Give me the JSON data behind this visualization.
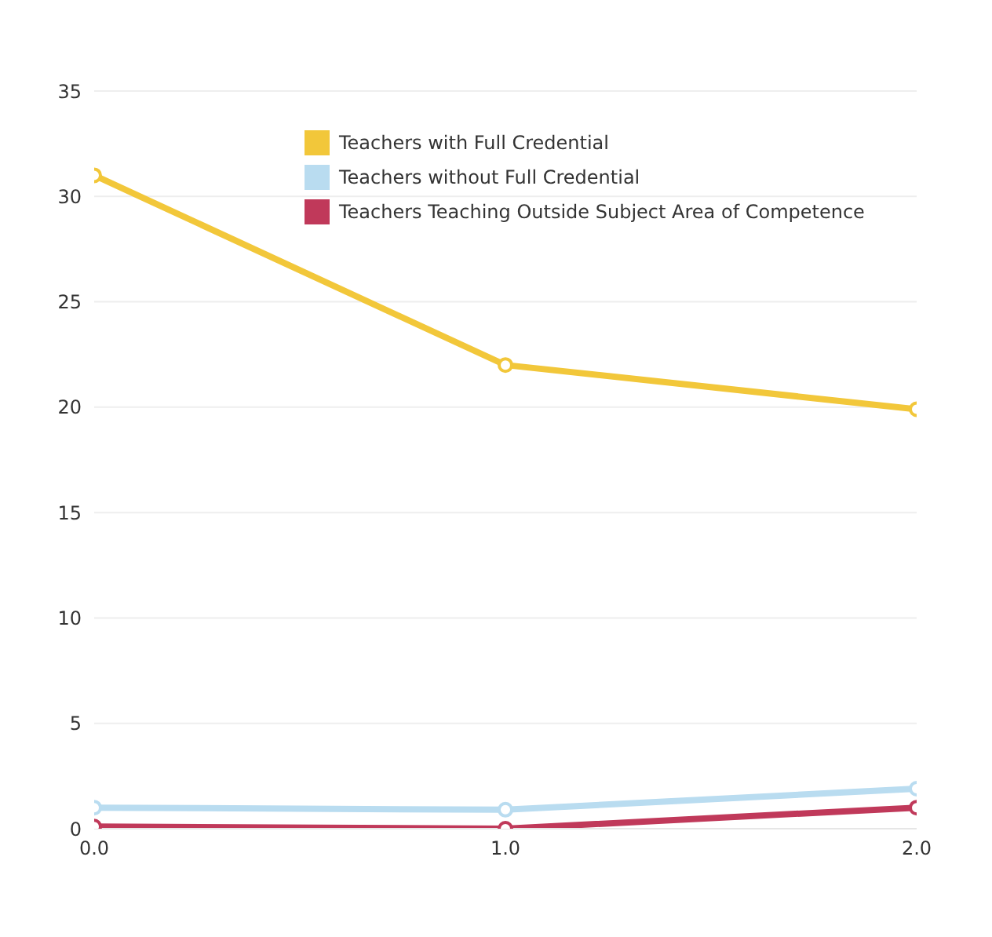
{
  "chart_data": {
    "type": "line",
    "x": [
      0,
      1,
      2
    ],
    "series": [
      {
        "name": "Teachers with Full Credential",
        "color": "#f2c73a",
        "values": [
          31,
          22,
          19.9
        ]
      },
      {
        "name": "Teachers without Full Credential",
        "color": "#b9dcf0",
        "values": [
          1,
          0.9,
          1.9
        ]
      },
      {
        "name": "Teachers Teaching Outside Subject Area of Competence",
        "color": "#c0395a",
        "values": [
          0.1,
          0,
          1
        ]
      }
    ],
    "xlim": [
      0,
      2
    ],
    "xticks": [
      {
        "value": 0,
        "label": "0.0"
      },
      {
        "value": 1,
        "label": "1.0"
      },
      {
        "value": 2,
        "label": "2.0"
      }
    ],
    "ylim": [
      0,
      35
    ],
    "yticks": [
      0,
      5,
      10,
      15,
      20,
      25,
      30,
      35
    ],
    "grid": "y",
    "legend": "top",
    "marker": "circle",
    "line_style": "solid"
  }
}
